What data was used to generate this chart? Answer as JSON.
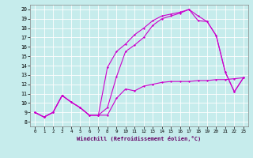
{
  "xlabel": "Windchill (Refroidissement éolien,°C)",
  "bg_color": "#c6ecec",
  "line_color": "#cc00cc",
  "grid_color": "#aadddd",
  "xlim": [
    -0.5,
    23.5
  ],
  "ylim": [
    7.5,
    20.5
  ],
  "xticks": [
    0,
    1,
    2,
    3,
    4,
    5,
    6,
    7,
    8,
    9,
    10,
    11,
    12,
    13,
    14,
    15,
    16,
    17,
    18,
    19,
    20,
    21,
    22,
    23
  ],
  "yticks": [
    8,
    9,
    10,
    11,
    12,
    13,
    14,
    15,
    16,
    17,
    18,
    19,
    20
  ],
  "line1_x": [
    0,
    1,
    2,
    3,
    4,
    5,
    6,
    7,
    8,
    9,
    10,
    11,
    12,
    13,
    14,
    15,
    16,
    17,
    18,
    19,
    20,
    21,
    22,
    23
  ],
  "line1_y": [
    9.0,
    8.5,
    9.0,
    10.8,
    10.1,
    9.5,
    8.7,
    8.7,
    8.7,
    10.5,
    11.5,
    11.3,
    11.8,
    12.0,
    12.2,
    12.3,
    12.3,
    12.3,
    12.4,
    12.4,
    12.5,
    12.5,
    12.6,
    12.7
  ],
  "line2_x": [
    0,
    1,
    2,
    3,
    4,
    5,
    6,
    7,
    8,
    9,
    10,
    11,
    12,
    13,
    14,
    15,
    16,
    17,
    18,
    19,
    20,
    21,
    22,
    23
  ],
  "line2_y": [
    9.0,
    8.5,
    9.0,
    10.8,
    10.1,
    9.5,
    8.7,
    8.7,
    9.5,
    12.8,
    15.5,
    16.2,
    17.0,
    18.3,
    19.0,
    19.3,
    19.6,
    20.0,
    19.3,
    18.7,
    17.2,
    13.3,
    11.2,
    12.7
  ],
  "line3_x": [
    0,
    1,
    2,
    3,
    4,
    5,
    6,
    7,
    8,
    9,
    10,
    11,
    12,
    13,
    14,
    15,
    16,
    17,
    18,
    19,
    20,
    21,
    22,
    23
  ],
  "line3_y": [
    9.0,
    8.5,
    9.0,
    10.8,
    10.1,
    9.5,
    8.7,
    8.7,
    13.8,
    15.5,
    16.3,
    17.3,
    18.0,
    18.8,
    19.3,
    19.5,
    19.7,
    20.0,
    18.8,
    18.7,
    17.2,
    13.3,
    11.2,
    12.7
  ]
}
